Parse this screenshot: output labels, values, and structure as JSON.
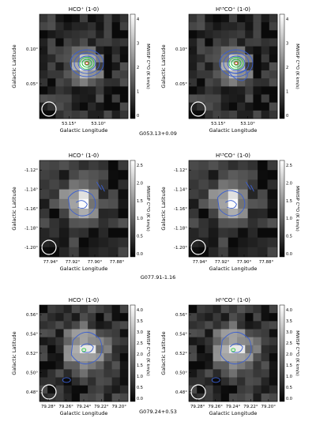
{
  "figure": {
    "rows": [
      {
        "caption": "G053.13+0.09",
        "xlabel": "Galactic Longitude",
        "ylabel": "Galactic Latitude",
        "xticks": [
          "53.15°",
          "53.10°"
        ],
        "yticks": [
          "0.10°",
          "0.05°"
        ],
        "colorbar_label": "MWISP C¹⁸O (K km/s)",
        "colorbar_ticks": [
          "4",
          "3",
          "2",
          "1",
          "0"
        ],
        "panels": [
          {
            "title": "HCO⁺ (1-0)"
          },
          {
            "title": "H¹³CO⁺ (1-0)"
          }
        ]
      },
      {
        "caption": "G077.91-1.16",
        "xlabel": "Galactic Longitude",
        "ylabel": "Galactic Latitude",
        "xticks": [
          "77.94°",
          "77.92°",
          "77.90°",
          "77.88°"
        ],
        "yticks": [
          "-1.12°",
          "-1.14°",
          "-1.16°",
          "-1.18°",
          "-1.20°"
        ],
        "colorbar_label": "MWISP C¹⁸O (K km/s)",
        "colorbar_ticks": [
          "2.5",
          "2.0",
          "1.5",
          "1.0",
          "0.5",
          "0.0"
        ],
        "panels": [
          {
            "title": "HCO⁺ (1-0)"
          },
          {
            "title": "H¹³CO⁺ (1-0)"
          }
        ]
      },
      {
        "caption": "G079.24+0.53",
        "xlabel": "Galactic Longitude",
        "ylabel": "Galactic Latitude",
        "xticks": [
          "79.28°",
          "79.26°",
          "79.24°",
          "79.22°",
          "79.20°"
        ],
        "yticks": [
          "0.56°",
          "0.54°",
          "0.52°",
          "0.50°",
          "0.48°"
        ],
        "colorbar_label": "MWISP C¹⁸O (K km/s)",
        "colorbar_ticks": [
          "4.0",
          "3.5",
          "3.0",
          "2.5",
          "2.0",
          "1.5",
          "1.0",
          "0.5",
          "0.0"
        ],
        "panels": [
          {
            "title": "HCO⁺ (1-0)"
          },
          {
            "title": "H¹³CO⁺ (1-0)"
          }
        ]
      }
    ],
    "colors": {
      "contour_blue": "#3a5fd0",
      "contour_green": "#2ecc40",
      "contour_red": "#d62728",
      "beam": "#ffffff"
    }
  }
}
